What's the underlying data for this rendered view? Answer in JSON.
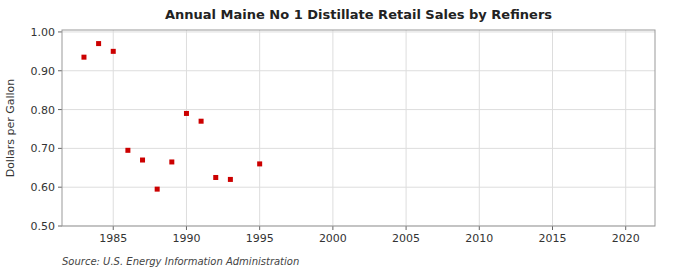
{
  "chart_data": {
    "type": "scatter",
    "title": "Annual Maine No 1 Distillate Retail Sales by Refiners",
    "y_label": "Dollars per Gallon",
    "annotations": [
      "Source: U.S. Energy Information Administration"
    ],
    "x": [
      1983,
      1984,
      1985,
      1986,
      1987,
      1988,
      1989,
      1990,
      1991,
      1992,
      1993,
      1995
    ],
    "values": [
      0.935,
      0.97,
      0.95,
      0.695,
      0.67,
      0.595,
      0.665,
      0.79,
      0.77,
      0.625,
      0.62,
      0.66
    ],
    "color": "#cc0000",
    "marker": "square",
    "xlim": [
      1981.5,
      2022
    ],
    "ylim": [
      0.5,
      1.005
    ],
    "xticks": [
      1985,
      1990,
      1995,
      2000,
      2005,
      2010,
      2015,
      2020
    ],
    "yticks": [
      {
        "value": 0.5,
        "label": "0.50"
      },
      {
        "value": 0.6,
        "label": "0.60"
      },
      {
        "value": 0.7,
        "label": "0.70"
      },
      {
        "value": 0.8,
        "label": "0.80"
      },
      {
        "value": 0.9,
        "label": "0.90"
      },
      {
        "value": 1.0,
        "label": "1.00"
      }
    ],
    "grid": true
  }
}
